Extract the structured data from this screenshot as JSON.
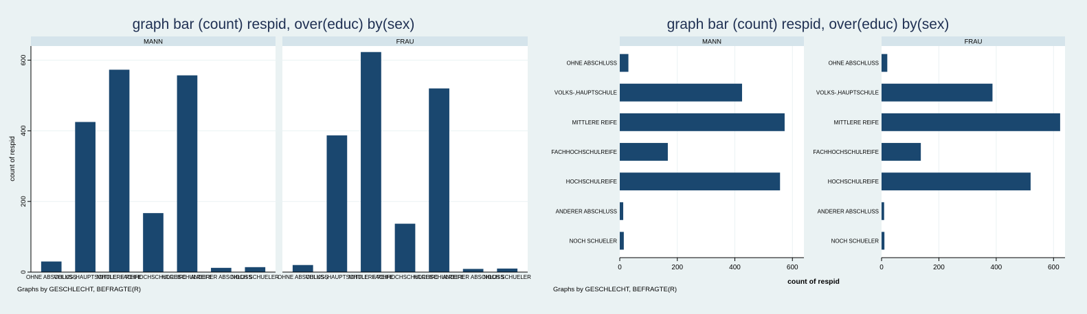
{
  "chart_data": [
    {
      "type": "bar",
      "orientation": "vertical",
      "title": "graph bar (count) respid, over(educ) by(sex)",
      "ylabel": "count of respid",
      "note": "Graphs by GESCHLECHT, BEFRAGTE(R)",
      "ylim": [
        0,
        640
      ],
      "yticks": [
        0,
        200,
        400,
        600
      ],
      "grid": true,
      "color": "#1a476f",
      "categories": [
        "OHNE ABSCHLUSS",
        "VOLKS-,HAUPTSCHULE",
        "MITTLERE REIFE",
        "FACHHOCHSCHULREIFE",
        "HOCHSCHULREIFE",
        "ANDERER ABSCHLUSS",
        "NOCH SCHUELER"
      ],
      "panels": [
        {
          "label": "MANN",
          "values": [
            30,
            425,
            573,
            167,
            557,
            12,
            14
          ]
        },
        {
          "label": "FRAU",
          "values": [
            20,
            387,
            623,
            137,
            520,
            9,
            10
          ]
        }
      ]
    },
    {
      "type": "bar",
      "orientation": "horizontal",
      "title": "graph bar (count) respid, over(educ) by(sex)",
      "xlabel": "count of respid",
      "note": "Graphs by GESCHLECHT, BEFRAGTE(R)",
      "xlim": [
        0,
        640
      ],
      "xticks": [
        0,
        200,
        400,
        600
      ],
      "grid": true,
      "color": "#1a476f",
      "categories": [
        "OHNE ABSCHLUSS",
        "VOLKS-,HAUPTSCHULE",
        "MITTLERE REIFE",
        "FACHHOCHSCHULREIFE",
        "HOCHSCHULREIFE",
        "ANDERER ABSCHLUSS",
        "NOCH SCHUELER"
      ],
      "panels": [
        {
          "label": "MANN",
          "values": [
            30,
            425,
            573,
            167,
            557,
            12,
            14
          ]
        },
        {
          "label": "FRAU",
          "values": [
            20,
            387,
            623,
            137,
            520,
            9,
            10
          ]
        }
      ]
    }
  ]
}
